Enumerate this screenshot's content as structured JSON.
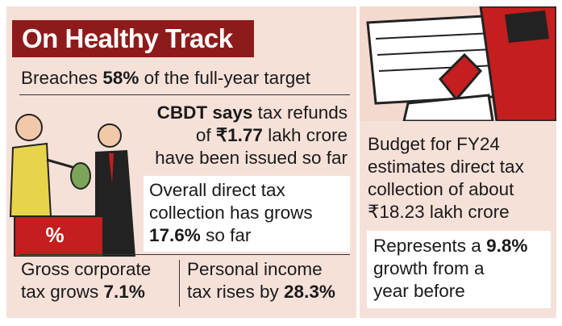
{
  "title": "On Healthy Track",
  "target": [
    "Breaches ",
    "58%",
    " of the full-year target"
  ],
  "refunds": {
    "lines": [
      [
        "CBDT says",
        " tax refunds"
      ],
      [
        "of ",
        "₹1.77",
        " lakh crore"
      ],
      [
        "have been issued so far"
      ]
    ]
  },
  "overall": {
    "lines": [
      [
        "Overall direct tax"
      ],
      [
        "collection has grows"
      ],
      [
        "17.6%",
        " so far"
      ]
    ]
  },
  "corporate": {
    "lines": [
      [
        "Gross corporate"
      ],
      [
        "tax grows ",
        "7.1%"
      ]
    ]
  },
  "personal": {
    "lines": [
      [
        "Personal income"
      ],
      [
        "tax rises by ",
        "28.3%"
      ]
    ]
  },
  "budget": {
    "lines": [
      [
        "Budget for FY24"
      ],
      [
        "estimates direct tax"
      ],
      [
        "collection of about"
      ],
      [
        "₹18.23 lakh crore"
      ]
    ]
  },
  "growth": {
    "lines": [
      [
        "Represents a ",
        "9.8%"
      ],
      [
        "growth from a"
      ],
      [
        "year before"
      ]
    ]
  }
}
